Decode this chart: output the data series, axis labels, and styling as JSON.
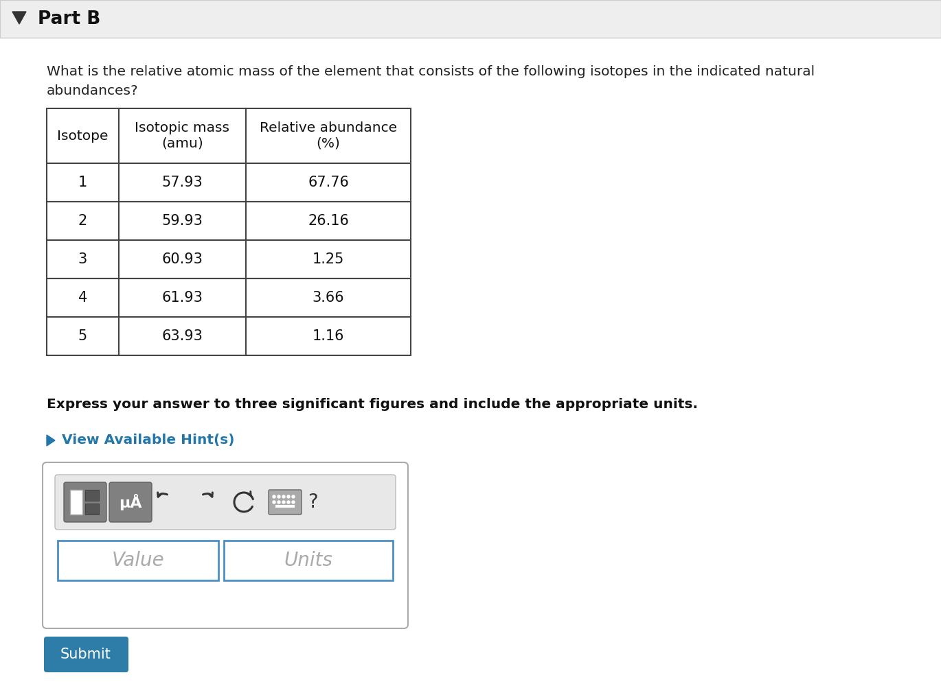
{
  "title_part": "Part B",
  "question_text_line1": "What is the relative atomic mass of the element that consists of the following isotopes in the indicated natural",
  "question_text_line2": "abundances?",
  "table_headers": [
    "Isotope",
    "Isotopic mass\n(amu)",
    "Relative abundance\n(%)"
  ],
  "table_data": [
    [
      "1",
      "57.93",
      "67.76"
    ],
    [
      "2",
      "59.93",
      "26.16"
    ],
    [
      "3",
      "60.93",
      "1.25"
    ],
    [
      "4",
      "61.93",
      "3.66"
    ],
    [
      "5",
      "63.93",
      "1.16"
    ]
  ],
  "bold_text": "Express your answer to three significant figures and include the appropriate units.",
  "hint_text": "View Available Hint(s)",
  "value_placeholder": "Value",
  "units_placeholder": "Units",
  "submit_text": "Submit",
  "bg_color": "#f7f7f7",
  "white_color": "#ffffff",
  "hint_color": "#2277aa",
  "submit_bg": "#2e7da8",
  "submit_text_color": "#ffffff",
  "border_color": "#444444",
  "input_border": "#4a90c4",
  "toolbar_bg": "#d8d8d8",
  "header_bar_color": "#eeeeee",
  "header_border_color": "#cccccc",
  "icon_bg": "#808080",
  "icon_dark": "#606060"
}
